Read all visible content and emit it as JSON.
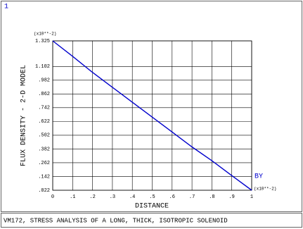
{
  "chart_data": {
    "type": "line",
    "window_label": "1",
    "title": "VM172, STRESS ANALYSIS OF A LONG, THICK, ISOTROPIC SOLENOID",
    "xlabel": "DISTANCE",
    "ylabel": "FLUX DENSITY - 2-D MODEL",
    "x_unit": "(x10**-2)",
    "y_unit": "(x10**-2)",
    "x": [
      0,
      0.1,
      0.2,
      0.3,
      0.4,
      0.5,
      0.6,
      0.7,
      0.8,
      0.9,
      1
    ],
    "series": [
      {
        "name": "BY",
        "color": "#0000cc",
        "values": [
          1.325,
          1.19,
          1.05,
          0.92,
          0.79,
          0.66,
          0.53,
          0.4,
          0.28,
          0.15,
          0.022
        ]
      }
    ],
    "xlim": [
      0,
      1
    ],
    "ylim": [
      0.022,
      1.325
    ],
    "xticks": [
      0,
      {
        "value": 0.1,
        "label": ".1"
      },
      {
        "value": 0.2,
        "label": ".2"
      },
      {
        "value": 0.3,
        "label": ".3"
      },
      {
        "value": 0.4,
        "label": ".4"
      },
      {
        "value": 0.5,
        "label": ".5"
      },
      {
        "value": 0.6,
        "label": ".6"
      },
      {
        "value": 0.7,
        "label": ".7"
      },
      {
        "value": 0.8,
        "label": ".8"
      },
      {
        "value": 0.9,
        "label": ".9"
      },
      1
    ],
    "yticks": [
      {
        "value": 0.022,
        "label": ".022"
      },
      {
        "value": 0.142,
        "label": ".142"
      },
      {
        "value": 0.262,
        "label": ".262"
      },
      {
        "value": 0.382,
        "label": ".382"
      },
      {
        "value": 0.502,
        "label": ".502"
      },
      {
        "value": 0.622,
        "label": ".622"
      },
      {
        "value": 0.742,
        "label": ".742"
      },
      {
        "value": 0.862,
        "label": ".862"
      },
      {
        "value": 0.982,
        "label": ".982"
      },
      1.102,
      1.325
    ],
    "grid": true
  }
}
